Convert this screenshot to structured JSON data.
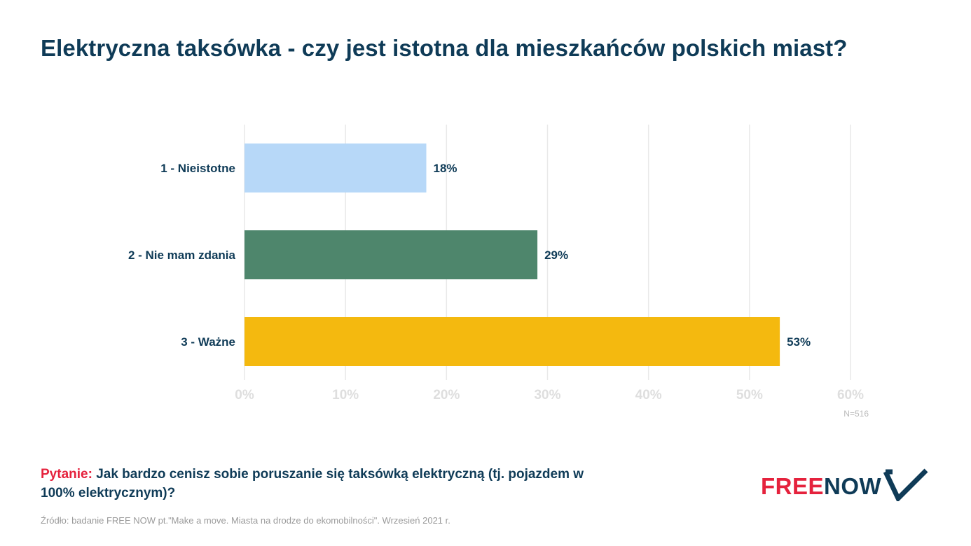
{
  "title": "Elektryczna taksówka - czy jest istotna dla mieszkańców polskich miast?",
  "chart_data": {
    "type": "bar",
    "orientation": "horizontal",
    "categories": [
      "1 - Nieistotne",
      "2 - Nie mam zdania",
      "3 - Ważne"
    ],
    "values": [
      18,
      29,
      53
    ],
    "value_labels": [
      "18%",
      "29%",
      "53%"
    ],
    "colors": [
      "#b7d8f8",
      "#4e866c",
      "#f4b90f"
    ],
    "xlim": [
      0,
      60
    ],
    "xticks": [
      0,
      10,
      20,
      30,
      40,
      50,
      60
    ],
    "xtick_labels": [
      "0%",
      "10%",
      "20%",
      "30%",
      "40%",
      "50%",
      "60%"
    ],
    "grid": "vertical",
    "legend": "none"
  },
  "sample_note": "N=516",
  "question": {
    "prefix": "Pytanie:",
    "text": "Jak bardzo cenisz sobie poruszanie się taksówką elektryczną (tj. pojazdem w 100% elektrycznym)?"
  },
  "source": "Źródło: badanie FREE NOW pt.\"Make a move. Miasta na drodze do ekomobilności\". Wrzesień 2021 r.",
  "logo": {
    "part1": "FREE",
    "part2": "NOW",
    "icon": "checkmark-chevron-icon",
    "colors": {
      "free": "#e5223d",
      "now": "#0f3b57"
    }
  }
}
